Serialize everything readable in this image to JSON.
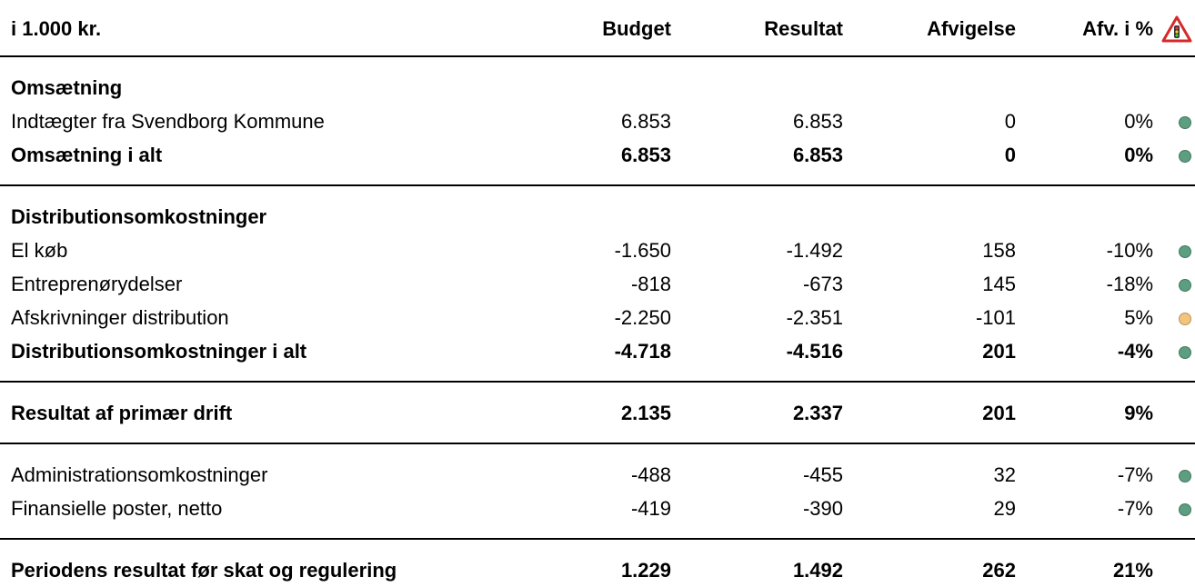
{
  "header": {
    "columns": [
      "i 1.000 kr.",
      "Budget",
      "Resultat",
      "Afvigelse",
      "Afv. i %"
    ]
  },
  "groups": [
    {
      "rows": [
        {
          "label": "Omsætning",
          "bold": true
        },
        {
          "label": "Indtægter fra Svendborg Kommune",
          "cells": [
            "6.853",
            "6.853",
            "0",
            "0%"
          ],
          "dot": "#5c9e80"
        },
        {
          "label": "Omsætning i alt",
          "bold": true,
          "cells": [
            "6.853",
            "6.853",
            "0",
            "0%"
          ],
          "dot": "#5c9e80"
        }
      ]
    },
    {
      "rows": [
        {
          "label": "Distributionsomkostninger",
          "bold": true
        },
        {
          "label": "El køb",
          "cells": [
            "-1.650",
            "-1.492",
            "158",
            "-10%"
          ],
          "dot": "#5c9e80"
        },
        {
          "label": "Entreprenørydelser",
          "cells": [
            "-818",
            "-673",
            "145",
            "-18%"
          ],
          "dot": "#5c9e80"
        },
        {
          "label": "Afskrivninger distribution",
          "cells": [
            "-2.250",
            "-2.351",
            "-101",
            "5%"
          ],
          "dot": "#f3c47e"
        },
        {
          "label": "Distributionsomkostninger i alt",
          "bold": true,
          "cells": [
            "-4.718",
            "-4.516",
            "201",
            "-4%"
          ],
          "dot": "#5c9e80"
        }
      ]
    },
    {
      "rows": [
        {
          "label": "Resultat af primær drift",
          "bold": true,
          "cells": [
            "2.135",
            "2.337",
            "201",
            "9%"
          ]
        }
      ]
    },
    {
      "rows": [
        {
          "label": "Administrationsomkostninger",
          "cells": [
            "-488",
            "-455",
            "32",
            "-7%"
          ],
          "dot": "#5c9e80"
        },
        {
          "label": "Finansielle poster, netto",
          "cells": [
            "-419",
            "-390",
            "29",
            "-7%"
          ],
          "dot": "#5c9e80"
        }
      ]
    },
    {
      "rows": [
        {
          "label": "Periodens resultat før skat og regulering",
          "bold": true,
          "cells": [
            "1.229",
            "1.492",
            "262",
            "21%"
          ]
        }
      ]
    }
  ]
}
